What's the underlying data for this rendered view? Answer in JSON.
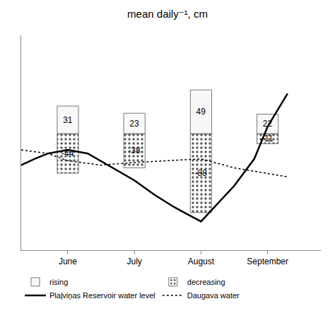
{
  "chart_data": {
    "type": "bar",
    "title": "mean daily⁻¹, cm",
    "xlim": [
      0.3,
      4.8
    ],
    "xticks": [
      {
        "value": 1,
        "label": "June"
      },
      {
        "value": 2,
        "label": "July"
      },
      {
        "value": 3,
        "label": "August"
      },
      {
        "value": 4,
        "label": "September"
      }
    ],
    "ylim": [
      -130,
      110
    ],
    "tick_labels": "x",
    "grid": false,
    "data_labels": true,
    "legend": "bottom",
    "series": [
      {
        "name": "rising",
        "type": "bar",
        "color": "#f8f8f8",
        "x": [
          1,
          2,
          3,
          4
        ],
        "values": [
          31,
          23,
          49,
          22
        ]
      },
      {
        "name": "decreasing",
        "type": "bar",
        "color": "#e0e0e0",
        "marker": "dots",
        "x": [
          1,
          2,
          3,
          4
        ],
        "values": [
          -44,
          -38,
          -88,
          -11
        ]
      },
      {
        "name": "Plaļviņas Reservoir water level",
        "type": "line",
        "color": "black",
        "line_style": "solid",
        "x": [
          0.3,
          0.5,
          0.7,
          1.0,
          1.3,
          1.6,
          2.0,
          2.3,
          2.6,
          2.8,
          3.0,
          3.2,
          3.5,
          3.8,
          4.0,
          4.3
        ],
        "values": [
          -35,
          -28,
          -22,
          -18,
          -22,
          -35,
          -52,
          -68,
          -82,
          -90,
          -98,
          -82,
          -58,
          -28,
          8,
          45
        ]
      },
      {
        "name": "Daugava water",
        "type": "line",
        "color": "black",
        "line_style": "dotted",
        "x": [
          0.3,
          0.7,
          1.0,
          1.5,
          2.0,
          2.5,
          3.0,
          3.5,
          4.0,
          4.3
        ],
        "values": [
          -18,
          -22,
          -30,
          -35,
          -32,
          -30,
          -28,
          -38,
          -44,
          -48
        ]
      }
    ]
  }
}
